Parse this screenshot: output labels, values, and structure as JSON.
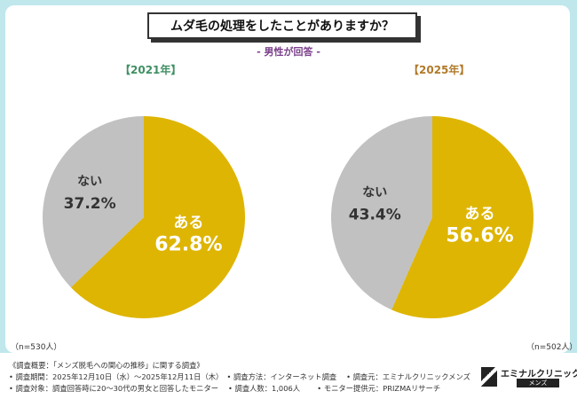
{
  "header": {
    "title": "ムダ毛の処理をしたことがありますか？",
    "subtitle": "- 男性が回答 -"
  },
  "colors": {
    "yes": "#deb503",
    "no": "#c1c1c1",
    "frame": "#bfe7ec"
  },
  "chart_data": [
    {
      "type": "pie",
      "title": "【2021年】",
      "sample": "（n=530人）",
      "slices": [
        {
          "label": "ある",
          "value": 62.8,
          "display": "62.8%"
        },
        {
          "label": "ない",
          "value": 37.2,
          "display": "37.2%"
        }
      ]
    },
    {
      "type": "pie",
      "title": "【2025年】",
      "sample": "（n=502人）",
      "slices": [
        {
          "label": "ある",
          "value": 56.6,
          "display": "56.6%"
        },
        {
          "label": "ない",
          "value": 43.4,
          "display": "43.4%"
        }
      ]
    }
  ],
  "footer": {
    "lines": [
      "《調査概要：「メンズ脱毛への関心の推移」に関する調査》",
      "• 調査期間：2025年12月10日（水）〜2025年12月11日（木）　• 調査方法：インターネット調査　 • 調査元：エミナルクリニックメンズ",
      "• 調査対象：調査回答時に20〜30代の男女と回答したモニター　 • 調査人数：1,006人　　 • モニター提供元：PRIZMAリサーチ"
    ],
    "brand_name": "エミナルクリニック",
    "brand_sub": "メンズ"
  }
}
